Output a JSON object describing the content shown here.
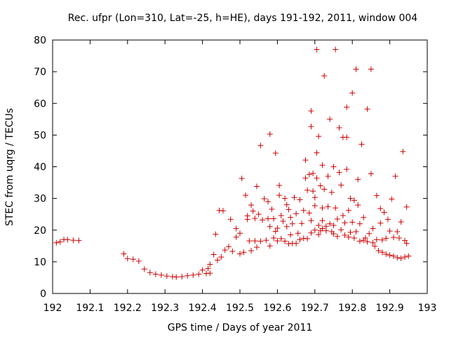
{
  "chart_data": {
    "type": "scatter",
    "title": "Rec. ufpr (Lon=310, Lat=-25, h=HE), days 191-192, 2011, window 004",
    "xlabel": "GPS time / Days of year 2011",
    "ylabel": "STEC from uqrg / TECUs",
    "xlim": [
      192,
      193
    ],
    "ylim": [
      0,
      80
    ],
    "xticks": [
      "192",
      "192.1",
      "192.2",
      "192.3",
      "192.4",
      "192.5",
      "192.6",
      "192.7",
      "192.8",
      "192.9",
      "193"
    ],
    "yticks": [
      "0",
      "10",
      "20",
      "30",
      "40",
      "50",
      "60",
      "70",
      "80"
    ],
    "marker": "+",
    "marker_color": "#cc0000",
    "grid": false,
    "series": [
      {
        "name": "STEC",
        "points": [
          [
            192.01,
            16.0
          ],
          [
            192.02,
            16.3
          ],
          [
            192.03,
            17.0
          ],
          [
            192.04,
            17.0
          ],
          [
            192.055,
            16.8
          ],
          [
            192.07,
            16.7
          ],
          [
            192.19,
            12.5
          ],
          [
            192.2,
            11.0
          ],
          [
            192.215,
            10.8
          ],
          [
            192.23,
            10.2
          ],
          [
            192.245,
            7.7
          ],
          [
            192.26,
            6.6
          ],
          [
            192.275,
            6.1
          ],
          [
            192.29,
            5.8
          ],
          [
            192.305,
            5.5
          ],
          [
            192.32,
            5.3
          ],
          [
            192.33,
            5.2
          ],
          [
            192.345,
            5.3
          ],
          [
            192.36,
            5.6
          ],
          [
            192.375,
            5.8
          ],
          [
            192.39,
            6.1
          ],
          [
            192.4,
            7.4
          ],
          [
            192.41,
            6.3
          ],
          [
            192.42,
            6.4
          ],
          [
            192.42,
            9.2
          ],
          [
            192.43,
            12.3
          ],
          [
            192.44,
            10.5
          ],
          [
            192.45,
            11.5
          ],
          [
            192.415,
            7.9
          ],
          [
            192.435,
            18.7
          ],
          [
            192.445,
            26.2
          ],
          [
            192.455,
            26.1
          ],
          [
            192.46,
            13.7
          ],
          [
            192.47,
            14.8
          ],
          [
            192.475,
            23.4
          ],
          [
            192.48,
            13.3
          ],
          [
            192.49,
            17.8
          ],
          [
            192.49,
            20.5
          ],
          [
            192.5,
            19.0
          ],
          [
            192.5,
            12.5
          ],
          [
            192.505,
            36.3
          ],
          [
            192.51,
            13.0
          ],
          [
            192.515,
            31.0
          ],
          [
            192.52,
            23.4
          ],
          [
            192.52,
            24.5
          ],
          [
            192.525,
            16.6
          ],
          [
            192.53,
            13.5
          ],
          [
            192.53,
            27.9
          ],
          [
            192.535,
            26.0
          ],
          [
            192.54,
            16.6
          ],
          [
            192.54,
            23.7
          ],
          [
            192.545,
            14.6
          ],
          [
            192.545,
            33.8
          ],
          [
            192.55,
            25.0
          ],
          [
            192.555,
            16.5
          ],
          [
            192.555,
            46.7
          ],
          [
            192.56,
            23.2
          ],
          [
            192.565,
            29.9
          ],
          [
            192.57,
            16.8
          ],
          [
            192.575,
            23.6
          ],
          [
            192.575,
            29.0
          ],
          [
            192.58,
            15.0
          ],
          [
            192.58,
            21.1
          ],
          [
            192.58,
            50.3
          ],
          [
            192.585,
            26.6
          ],
          [
            192.59,
            17.5
          ],
          [
            192.59,
            23.6
          ],
          [
            192.595,
            19.6
          ],
          [
            192.595,
            44.3
          ],
          [
            192.6,
            16.6
          ],
          [
            192.6,
            20.6
          ],
          [
            192.605,
            34.1
          ],
          [
            192.605,
            31.0
          ],
          [
            192.61,
            17.3
          ],
          [
            192.61,
            24.6
          ],
          [
            192.615,
            22.8
          ],
          [
            192.62,
            30.0
          ],
          [
            192.62,
            16.5
          ],
          [
            192.625,
            21.1
          ],
          [
            192.625,
            28.0
          ],
          [
            192.63,
            15.7
          ],
          [
            192.63,
            26.5
          ],
          [
            192.635,
            18.5
          ],
          [
            192.635,
            24.0
          ],
          [
            192.64,
            15.8
          ],
          [
            192.64,
            22.0
          ],
          [
            192.645,
            30.3
          ],
          [
            192.65,
            15.8
          ],
          [
            192.65,
            25.2
          ],
          [
            192.655,
            19.0
          ],
          [
            192.66,
            17.0
          ],
          [
            192.66,
            29.6
          ],
          [
            192.665,
            22.1
          ],
          [
            192.67,
            17.4
          ],
          [
            192.67,
            26.2
          ],
          [
            192.675,
            36.4
          ],
          [
            192.675,
            42.1
          ],
          [
            192.68,
            17.3
          ],
          [
            192.68,
            32.6
          ],
          [
            192.685,
            37.6
          ],
          [
            192.685,
            25.4
          ],
          [
            192.69,
            19.1
          ],
          [
            192.69,
            23.0
          ],
          [
            192.69,
            57.6
          ],
          [
            192.69,
            52.7
          ],
          [
            192.695,
            32.3
          ],
          [
            192.695,
            37.9
          ],
          [
            192.7,
            20.0
          ],
          [
            192.7,
            27.7
          ],
          [
            192.7,
            30.3
          ],
          [
            192.705,
            36.4
          ],
          [
            192.705,
            44.4
          ],
          [
            192.705,
            77.0
          ],
          [
            192.71,
            18.6
          ],
          [
            192.71,
            21.5
          ],
          [
            192.71,
            49.6
          ],
          [
            192.715,
            19.8
          ],
          [
            192.715,
            34.0
          ],
          [
            192.72,
            20.5
          ],
          [
            192.72,
            23.0
          ],
          [
            192.72,
            27.0
          ],
          [
            192.72,
            40.5
          ],
          [
            192.725,
            68.7
          ],
          [
            192.725,
            32.9
          ],
          [
            192.73,
            19.8
          ],
          [
            192.73,
            21.2
          ],
          [
            192.735,
            27.4
          ],
          [
            192.735,
            37.0
          ],
          [
            192.74,
            22.0
          ],
          [
            192.74,
            55.0
          ],
          [
            192.745,
            19.5
          ],
          [
            192.745,
            31.9
          ],
          [
            192.75,
            18.8
          ],
          [
            192.75,
            21.5
          ],
          [
            192.75,
            40.0
          ],
          [
            192.755,
            77.0
          ],
          [
            192.755,
            27.0
          ],
          [
            192.76,
            18.0
          ],
          [
            192.76,
            23.5
          ],
          [
            192.765,
            38.2
          ],
          [
            192.765,
            52.3
          ],
          [
            192.77,
            20.1
          ],
          [
            192.77,
            34.2
          ],
          [
            192.775,
            49.3
          ],
          [
            192.775,
            24.6
          ],
          [
            192.78,
            18.4
          ],
          [
            192.78,
            22.3
          ],
          [
            192.785,
            49.3
          ],
          [
            192.785,
            58.8
          ],
          [
            192.785,
            39.2
          ],
          [
            192.79,
            17.8
          ],
          [
            192.79,
            26.2
          ],
          [
            192.795,
            30.0
          ],
          [
            192.795,
            19.3
          ],
          [
            192.8,
            63.3
          ],
          [
            192.8,
            22.5
          ],
          [
            192.805,
            17.5
          ],
          [
            192.805,
            29.4
          ],
          [
            192.81,
            19.5
          ],
          [
            192.81,
            70.8
          ],
          [
            192.815,
            27.9
          ],
          [
            192.815,
            36.0
          ],
          [
            192.82,
            16.5
          ],
          [
            192.82,
            22.0
          ],
          [
            192.825,
            47.1
          ],
          [
            192.83,
            16.8
          ],
          [
            192.83,
            24.0
          ],
          [
            192.835,
            17.5
          ],
          [
            192.84,
            16.3
          ],
          [
            192.84,
            58.2
          ],
          [
            192.845,
            18.9
          ],
          [
            192.85,
            70.8
          ],
          [
            192.85,
            37.8
          ],
          [
            192.855,
            16.0
          ],
          [
            192.855,
            20.5
          ],
          [
            192.86,
            14.9
          ],
          [
            192.865,
            17.0
          ],
          [
            192.865,
            30.9
          ],
          [
            192.87,
            13.5
          ],
          [
            192.875,
            26.8
          ],
          [
            192.875,
            22.2
          ],
          [
            192.88,
            16.9
          ],
          [
            192.88,
            13.0
          ],
          [
            192.885,
            25.6
          ],
          [
            192.89,
            12.4
          ],
          [
            192.89,
            17.4
          ],
          [
            192.895,
            23.4
          ],
          [
            192.9,
            12.1
          ],
          [
            192.9,
            19.7
          ],
          [
            192.905,
            29.8
          ],
          [
            192.91,
            17.7
          ],
          [
            192.91,
            11.8
          ],
          [
            192.915,
            37.0
          ],
          [
            192.92,
            19.5
          ],
          [
            192.92,
            11.3
          ],
          [
            192.925,
            17.5
          ],
          [
            192.93,
            11.1
          ],
          [
            192.93,
            22.6
          ],
          [
            192.935,
            44.8
          ],
          [
            192.94,
            16.7
          ],
          [
            192.94,
            11.5
          ],
          [
            192.945,
            15.8
          ],
          [
            192.945,
            27.3
          ],
          [
            192.95,
            11.8
          ]
        ]
      }
    ]
  }
}
